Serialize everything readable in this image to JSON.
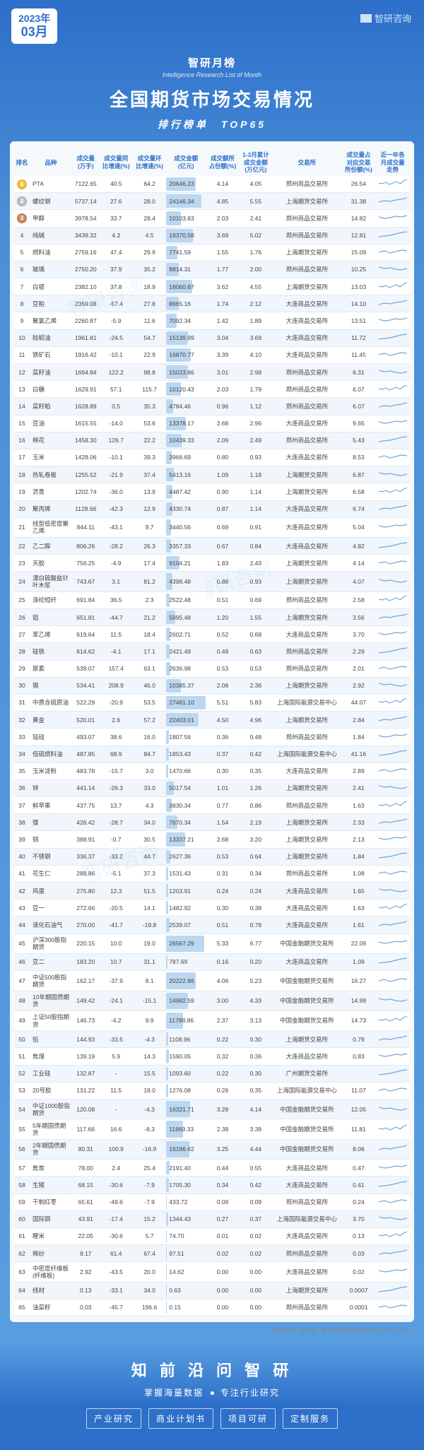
{
  "header": {
    "year": "2023年",
    "month": "03月",
    "brand": "智研咨询",
    "zh_sub": "智研月榜",
    "en_sub": "Intelligence Research List of Month",
    "main_title": "全国期货市场交易情况",
    "rank_sub": "排行榜单　TOP65"
  },
  "columns": [
    "排名",
    "品种",
    "成交量\n(万手)",
    "成交量同\n比增速(%)",
    "成交量环\n比增速(%)",
    "成交金额\n(亿元)",
    "成交额所\n占份额(%)",
    "1-3月累计\n成交金额\n(万亿元)",
    "交易所",
    "成交量占\n对应交易\n所份额(%)",
    "近一年各\n月成交量\n走势"
  ],
  "bar_max": 27481.1,
  "bar_color": "#bcd7f0",
  "rows": [
    [
      1,
      "PTA",
      "7122.65",
      "40.5",
      "64.2",
      "20646.23",
      "4.14",
      "4.05",
      "郑州商品交易所",
      "26.54"
    ],
    [
      2,
      "螺纹钢",
      "5737.14",
      "27.6",
      "28.0",
      "24146.34",
      "4.85",
      "5.55",
      "上海期货交易所",
      "31.38"
    ],
    [
      3,
      "甲醇",
      "3978.54",
      "33.7",
      "28.4",
      "10103.83",
      "2.03",
      "2.41",
      "郑州商品交易所",
      "14.82"
    ],
    [
      4,
      "纯碱",
      "3439.32",
      "4.3",
      "4.5",
      "18370.58",
      "3.69",
      "5.02",
      "郑州商品交易所",
      "12.81"
    ],
    [
      5,
      "燃料油",
      "2759.16",
      "47.4",
      "29.9",
      "7741.59",
      "1.55",
      "1.76",
      "上海期货交易所",
      "15.09"
    ],
    [
      6,
      "玻璃",
      "2750.20",
      "37.9",
      "35.2",
      "8814.31",
      "1.77",
      "2.00",
      "郑州商品交易所",
      "10.25"
    ],
    [
      7,
      "白银",
      "2382.10",
      "37.8",
      "18.9",
      "18060.87",
      "3.62",
      "4.55",
      "上海期货交易所",
      "13.03"
    ],
    [
      8,
      "豆粕",
      "2359.08",
      "-57.4",
      "27.8",
      "8665.16",
      "1.74",
      "2.12",
      "大连商品交易所",
      "14.10"
    ],
    [
      9,
      "聚氯乙烯",
      "2260.87",
      "-5.9",
      "11.6",
      "7092.34",
      "1.42",
      "1.89",
      "大连商品交易所",
      "13.51"
    ],
    [
      10,
      "棕榈油",
      "1961.81",
      "-24.5",
      "54.7",
      "15139.99",
      "3.04",
      "3.69",
      "大连商品交易所",
      "11.72"
    ],
    [
      11,
      "铁矿石",
      "1916.42",
      "-10.1",
      "22.9",
      "16870.77",
      "3.39",
      "4.10",
      "大连商品交易所",
      "11.45"
    ],
    [
      12,
      "菜籽油",
      "1694.84",
      "122.2",
      "98.8",
      "15023.86",
      "3.01",
      "2.98",
      "郑州商品交易所",
      "6.31"
    ],
    [
      13,
      "白糖",
      "1629.91",
      "57.1",
      "115.7",
      "10120.43",
      "2.03",
      "1.79",
      "郑州商品交易所",
      "6.07"
    ],
    [
      14,
      "菜籽粕",
      "1628.89",
      "0.5",
      "35.3",
      "4784.46",
      "0.96",
      "1.12",
      "郑州商品交易所",
      "6.07"
    ],
    [
      15,
      "豆油",
      "1615.55",
      "-14.0",
      "53.6",
      "13378.17",
      "2.68",
      "2.96",
      "大连商品交易所",
      "9.65"
    ],
    [
      16,
      "棉花",
      "1458.30",
      "126.7",
      "22.2",
      "10439.33",
      "2.09",
      "2.49",
      "郑州商品交易所",
      "5.43"
    ],
    [
      17,
      "玉米",
      "1428.06",
      "-10.1",
      "39.3",
      "3966.69",
      "0.80",
      "0.93",
      "大连商品交易所",
      "8.53"
    ],
    [
      18,
      "热轧卷板",
      "1255.52",
      "-21.9",
      "37.4",
      "5413.16",
      "1.09",
      "1.18",
      "上海期货交易所",
      "6.87"
    ],
    [
      19,
      "沥青",
      "1202.74",
      "-36.0",
      "13.9",
      "4487.42",
      "0.90",
      "1.14",
      "上海期货交易所",
      "6.58"
    ],
    [
      20,
      "聚丙烯",
      "1128.66",
      "-42.3",
      "12.9",
      "4330.74",
      "0.87",
      "1.14",
      "大连商品交易所",
      "6.74"
    ],
    [
      21,
      "线型低密度聚乙烯",
      "844.11",
      "-43.1",
      "9.7",
      "3440.56",
      "0.69",
      "0.91",
      "大连商品交易所",
      "5.04"
    ],
    [
      22,
      "乙二醇",
      "806.26",
      "-28.2",
      "26.3",
      "3357.33",
      "0.67",
      "0.84",
      "大连商品交易所",
      "4.82"
    ],
    [
      23,
      "天胶",
      "756.25",
      "-4.9",
      "17.4",
      "9104.21",
      "1.83",
      "2.43",
      "上海期货交易所",
      "4.14"
    ],
    [
      24,
      "漂白硫酸盐针叶木浆",
      "743.67",
      "3.1",
      "81.2",
      "4398.48",
      "0.88",
      "0.93",
      "上海期货交易所",
      "4.07"
    ],
    [
      25,
      "涤纶短纤",
      "691.84",
      "36.5",
      "2.3",
      "2522.48",
      "0.51",
      "0.69",
      "郑州商品交易所",
      "2.58"
    ],
    [
      26,
      "铝",
      "651.81",
      "-44.7",
      "21.2",
      "5995.48",
      "1.20",
      "1.55",
      "上海期货交易所",
      "3.56"
    ],
    [
      27,
      "苯乙烯",
      "619.64",
      "11.5",
      "18.4",
      "2602.71",
      "0.52",
      "0.68",
      "大连商品交易所",
      "3.70"
    ],
    [
      28,
      "硅铁",
      "614.62",
      "-4.1",
      "17.1",
      "2421.49",
      "0.49",
      "0.63",
      "郑州商品交易所",
      "2.29"
    ],
    [
      29,
      "尿素",
      "539.07",
      "157.4",
      "63.1",
      "2636.98",
      "0.53",
      "0.53",
      "郑州商品交易所",
      "2.01"
    ],
    [
      30,
      "锡",
      "534.41",
      "208.9",
      "46.0",
      "10385.37",
      "2.08",
      "2.36",
      "上海期货交易所",
      "2.92"
    ],
    [
      31,
      "中质含硫原油",
      "522.29",
      "-20.9",
      "53.5",
      "27481.10",
      "5.51",
      "5.83",
      "上海国际能源交易中心",
      "44.07"
    ],
    [
      32,
      "黄金",
      "520.01",
      "2.6",
      "57.2",
      "22403.01",
      "4.50",
      "4.96",
      "上海期货交易所",
      "2.84"
    ],
    [
      33,
      "锰硅",
      "493.07",
      "38.6",
      "16.0",
      "1807.56",
      "0.36",
      "0.48",
      "郑州商品交易所",
      "1.84"
    ],
    [
      34,
      "低硫燃料油",
      "487.85",
      "68.9",
      "84.7",
      "1853.43",
      "0.37",
      "0.42",
      "上海国际能源交易中心",
      "41.16"
    ],
    [
      35,
      "玉米淀粉",
      "483.78",
      "-15.7",
      "3.0",
      "1470.66",
      "0.30",
      "0.35",
      "大连商品交易所",
      "2.89"
    ],
    [
      36,
      "锌",
      "441.14",
      "-26.3",
      "33.0",
      "5017.54",
      "1.01",
      "1.26",
      "上海期货交易所",
      "2.41"
    ],
    [
      37,
      "鲜苹果",
      "437.75",
      "13.7",
      "4.3",
      "3830.34",
      "0.77",
      "0.86",
      "郑州商品交易所",
      "1.63"
    ],
    [
      38,
      "镍",
      "426.42",
      "-28.7",
      "34.0",
      "7670.34",
      "1.54",
      "2.19",
      "上海期货交易所",
      "2.33"
    ],
    [
      39,
      "铜",
      "388.91",
      "-0.7",
      "30.5",
      "13337.21",
      "2.68",
      "3.20",
      "上海期货交易所",
      "2.13"
    ],
    [
      40,
      "不锈钢",
      "336.37",
      "-33.2",
      "44.7",
      "2627.36",
      "0.53",
      "0.64",
      "上海期货交易所",
      "1.84"
    ],
    [
      41,
      "花生仁",
      "288.86",
      "-5.1",
      "37.3",
      "1531.43",
      "0.31",
      "0.34",
      "郑州商品交易所",
      "1.08"
    ],
    [
      42,
      "鸡蛋",
      "275.80",
      "12.3",
      "51.5",
      "1203.91",
      "0.24",
      "0.24",
      "大连商品交易所",
      "1.65"
    ],
    [
      43,
      "豆一",
      "272.66",
      "-20.5",
      "14.1",
      "1482.92",
      "0.30",
      "0.38",
      "大连商品交易所",
      "1.63"
    ],
    [
      44,
      "液化石油气",
      "270.00",
      "-41.7",
      "-19.8",
      "2539.07",
      "0.51",
      "0.78",
      "大连商品交易所",
      "1.61"
    ],
    [
      45,
      "沪深300股指期货",
      "220.15",
      "10.0",
      "19.0",
      "26567.29",
      "5.33",
      "6.77",
      "中国金融期货交易所",
      "22.09"
    ],
    [
      46,
      "豆二",
      "183.20",
      "10.7",
      "31.1",
      "787.69",
      "0.16",
      "0.20",
      "大连商品交易所",
      "1.09"
    ],
    [
      47,
      "中证500股指期货",
      "162.17",
      "-37.9",
      "8.1",
      "20222.86",
      "4.06",
      "5.23",
      "中国金融期货交易所",
      "16.27"
    ],
    [
      48,
      "10年期国债期货",
      "149.42",
      "-24.1",
      "-15.1",
      "14982.59",
      "3.00",
      "4.33",
      "中国金融期货交易所",
      "14.99"
    ],
    [
      49,
      "上证50股指期货",
      "146.73",
      "-4.2",
      "9.9",
      "11788.86",
      "2.37",
      "3.13",
      "中国金融期货交易所",
      "14.73"
    ],
    [
      50,
      "铅",
      "144.93",
      "-33.5",
      "-4.3",
      "1108.96",
      "0.22",
      "0.30",
      "上海期货交易所",
      "0.79"
    ],
    [
      51,
      "焦煤",
      "139.19",
      "5.9",
      "14.3",
      "1590.05",
      "0.32",
      "0.36",
      "大连商品交易所",
      "0.83"
    ],
    [
      52,
      "工业硅",
      "132.87",
      "-",
      "15.5",
      "1093.60",
      "0.22",
      "0.30",
      "广州期货交易所",
      ""
    ],
    [
      53,
      "20号胶",
      "131.22",
      "11.5",
      "19.0",
      "1276.08",
      "0.26",
      "0.35",
      "上海国际能源交易中心",
      "11.07"
    ],
    [
      54,
      "中证1000股指期货",
      "120.08",
      "-",
      "-4.3",
      "16321.71",
      "3.28",
      "4.14",
      "中国金融期货交易所",
      "12.05"
    ],
    [
      55,
      "5年期国债期货",
      "117.66",
      "16.6",
      "-8.3",
      "11869.33",
      "2.38",
      "3.38",
      "中国金融期货交易所",
      "11.81"
    ],
    [
      56,
      "2年期国债期货",
      "80.31",
      "100.9",
      "-16.9",
      "16186.62",
      "3.25",
      "4.44",
      "中国金融期货交易所",
      "8.06"
    ],
    [
      57,
      "焦炭",
      "78.00",
      "2.4",
      "25.4",
      "2191.40",
      "0.44",
      "0.55",
      "大连商品交易所",
      "0.47"
    ],
    [
      58,
      "生猪",
      "68.15",
      "-30.6",
      "-7.9",
      "1705.30",
      "0.34",
      "0.42",
      "大连商品交易所",
      "0.41"
    ],
    [
      59,
      "干制红枣",
      "65.61",
      "-49.6",
      "-7.9",
      "433.72",
      "0.09",
      "0.09",
      "郑州商品交易所",
      "0.24"
    ],
    [
      60,
      "国际铜",
      "43.91",
      "-17.4",
      "15.2",
      "1344.43",
      "0.27",
      "0.37",
      "上海国际能源交易中心",
      "3.70"
    ],
    [
      61,
      "粳米",
      "22.05",
      "-30.6",
      "5.7",
      "74.70",
      "0.01",
      "0.02",
      "大连商品交易所",
      "0.13"
    ],
    [
      62,
      "棉纱",
      "9.17",
      "61.4",
      "67.4",
      "97.51",
      "0.02",
      "0.02",
      "郑州商品交易所",
      "0.03"
    ],
    [
      63,
      "中密度纤维板(纤维板)",
      "2.92",
      "-43.5",
      "20.0",
      "14.62",
      "0.00",
      "0.00",
      "大连商品交易所",
      "0.02"
    ],
    [
      64,
      "线材",
      "0.13",
      "-33.1",
      "34.0",
      "0.63",
      "0.00",
      "0.00",
      "上海期货交易所",
      "0.0007"
    ],
    [
      65,
      "油菜籽",
      "0.03",
      "-45.7",
      "196.6",
      "0.15",
      "0.00",
      "0.00",
      "郑州商品交易所",
      "0.0001"
    ]
  ],
  "sparkpaths": [
    "M0,7 L5,8 L10,6 L15,9 L20,7 L25,5 L30,8 L35,4 L40,2",
    "M0,9 L8,7 L16,8 L24,6 L32,5 L40,3",
    "M0,6 L8,8 L16,7 L24,5 L32,6 L40,4",
    "M0,10 L8,9 L16,8 L24,6 L32,4 L40,3",
    "M0,8 L8,6 L16,9 L24,7 L32,5 L40,6",
    "M0,5 L8,7 L16,6 L24,8 L32,9 L40,7"
  ],
  "source": "数据来源：证监会，智研咨询整理制作(www.chyxx.com)",
  "footer": {
    "title": "知 前 沿  问 智 研",
    "tag_left": "掌握海量数据",
    "tag_right": "专注行业研究",
    "boxes": [
      "产业研究",
      "商业计划书",
      "项目可研",
      "定制服务"
    ]
  },
  "watermark": "智研咨询"
}
